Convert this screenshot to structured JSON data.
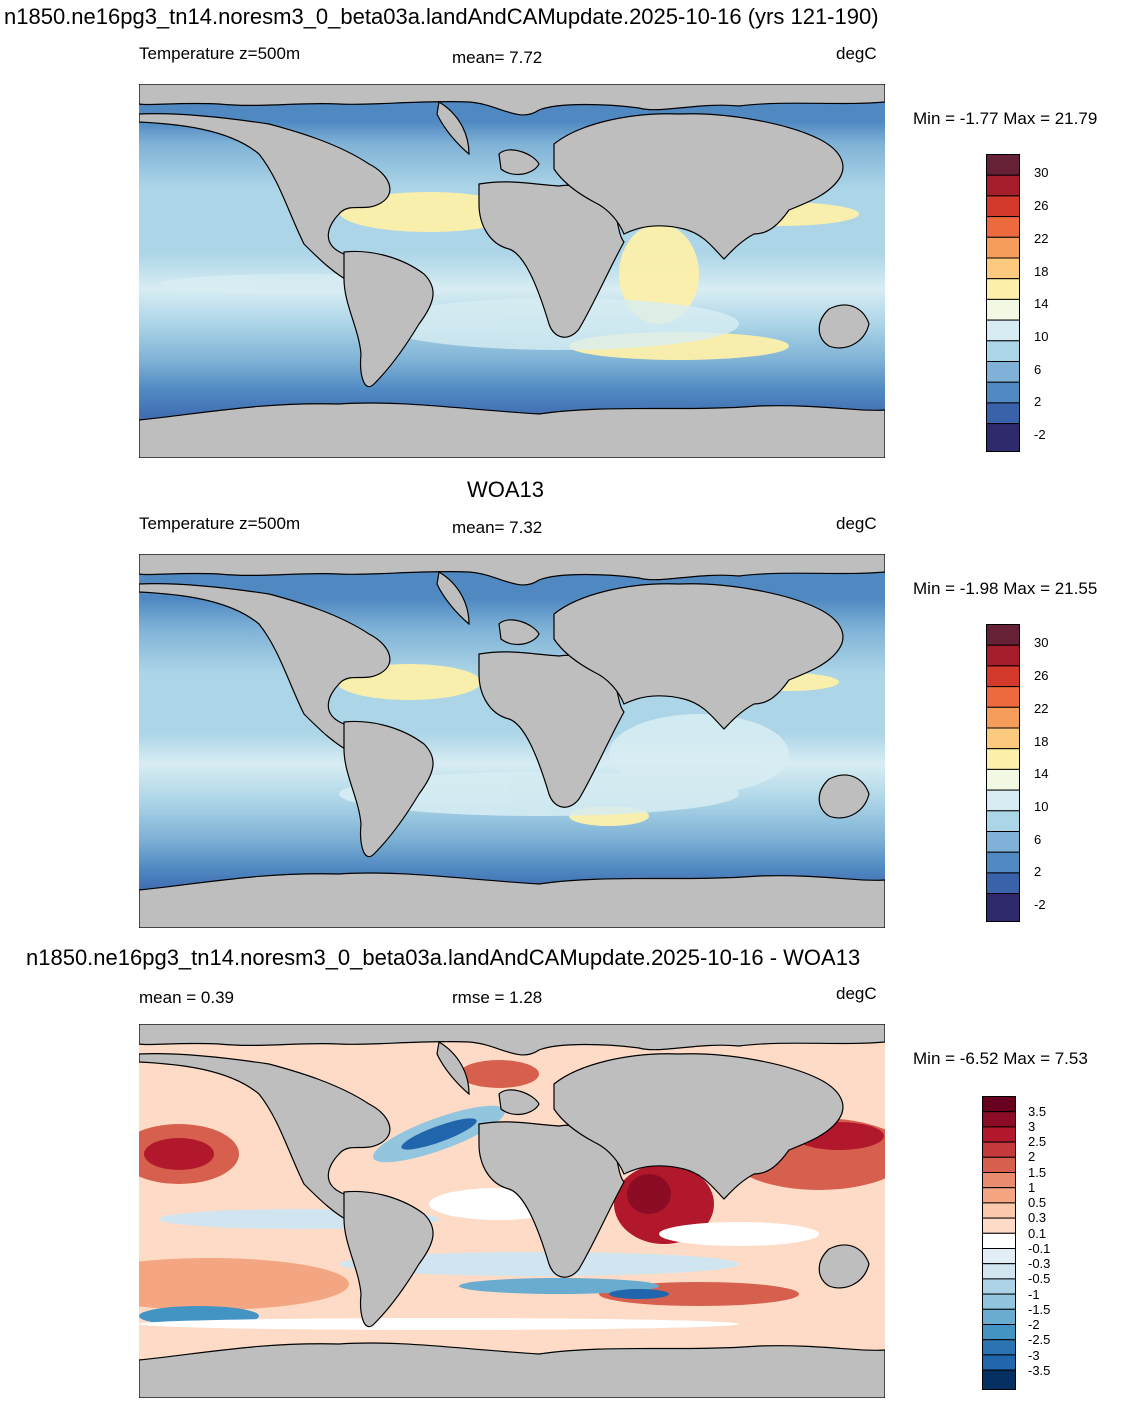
{
  "panels": [
    {
      "id": "model",
      "title": "n1850.ne16pg3_tn14.noresm3_0_beta03a.landAndCAMupdate.2025-10-16 (yrs 121-190)",
      "left_label": "Temperature z=500m",
      "center_label": "mean=   7.72",
      "units": "degC",
      "minmax": "Min =  -1.77 Max =  21.79",
      "colorbar_labels": [
        "30",
        "26",
        "22",
        "18",
        "14",
        "10",
        "6",
        "2",
        "-2"
      ]
    },
    {
      "id": "obs",
      "title": "WOA13",
      "left_label": "Temperature z=500m",
      "center_label": "mean=   7.32",
      "units": "degC",
      "minmax": "Min =  -1.98 Max =  21.55",
      "colorbar_labels": [
        "30",
        "26",
        "22",
        "18",
        "14",
        "10",
        "6",
        "2",
        "-2"
      ]
    },
    {
      "id": "diff",
      "title": "n1850.ne16pg3_tn14.noresm3_0_beta03a.landAndCAMupdate.2025-10-16 - WOA13",
      "left_label": "mean =   0.39",
      "center_label": "rmse =   1.28",
      "units": "degC",
      "minmax": "Min =  -6.52 Max =   7.53",
      "colorbar_labels": [
        "3.5",
        "3",
        "2.5",
        "2",
        "1.5",
        "1",
        "0.5",
        "0.3",
        "0.1",
        "-0.1",
        "-0.3",
        "-0.5",
        "-1",
        "-1.5",
        "-2",
        "-2.5",
        "-3",
        "-3.5"
      ]
    }
  ],
  "colors": {
    "land": "#bebebe",
    "temp_scale": [
      "#672136",
      "#a51d2a",
      "#d43a2b",
      "#ec6a3e",
      "#f79d5b",
      "#fcca7e",
      "#fdf0aa",
      "#f1f8e4",
      "#d8edf3",
      "#acd5e7",
      "#7fb2d6",
      "#5089c2",
      "#3a62aa",
      "#2e2a6c"
    ],
    "diff_scale": [
      "#67001f",
      "#8c0c25",
      "#b2182b",
      "#c5393d",
      "#d6604d",
      "#e88b6e",
      "#f4a582",
      "#f9c8ad",
      "#fddbc7",
      "#ffffff",
      "#e1eef5",
      "#d1e5f0",
      "#aed3e7",
      "#92c5de",
      "#6aacd0",
      "#4393c3",
      "#2c73b2",
      "#2166ac",
      "#053061"
    ]
  }
}
